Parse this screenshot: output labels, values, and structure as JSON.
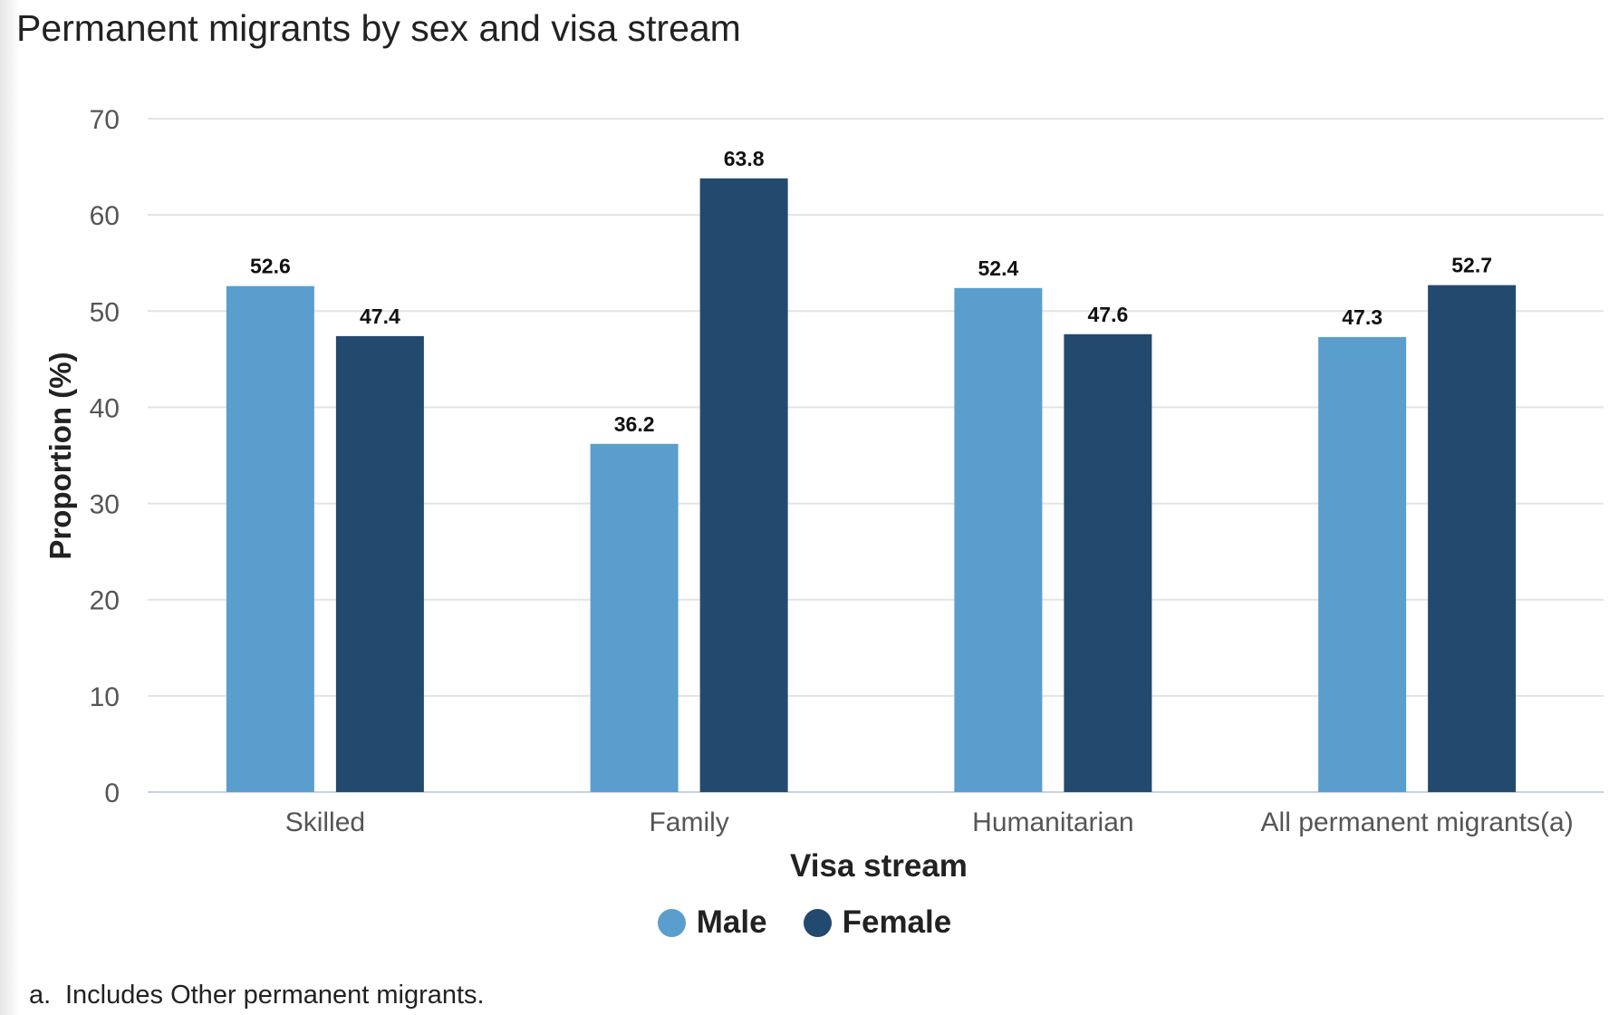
{
  "title": "Permanent migrants by sex and visa stream",
  "footnote": {
    "marker": "a.",
    "text": "Includes Other permanent migrants."
  },
  "colors": {
    "male": "#5a9ecd",
    "female": "#23496e",
    "grid": "#e3e3e3",
    "axis": "#c9d2dc",
    "tick_text": "#555555",
    "label_text": "#111111"
  },
  "legend": [
    {
      "name": "Male",
      "color": "#5a9ecd"
    },
    {
      "name": "Female",
      "color": "#23496e"
    }
  ],
  "chart_data": {
    "type": "bar",
    "title": "Permanent migrants by sex and visa stream",
    "xlabel": "Visa stream",
    "ylabel": "Proportion (%)",
    "categories": [
      "Skilled",
      "Family",
      "Humanitarian",
      "All permanent migrants(a)"
    ],
    "series": [
      {
        "name": "Male",
        "values": [
          52.6,
          36.2,
          52.4,
          47.3
        ]
      },
      {
        "name": "Female",
        "values": [
          47.4,
          63.8,
          47.6,
          52.7
        ]
      }
    ],
    "ylim": [
      0,
      70
    ],
    "yticks": [
      0,
      10,
      20,
      30,
      40,
      50,
      60,
      70
    ],
    "grid": true,
    "legend_position": "bottom-center",
    "data_labels": true
  }
}
